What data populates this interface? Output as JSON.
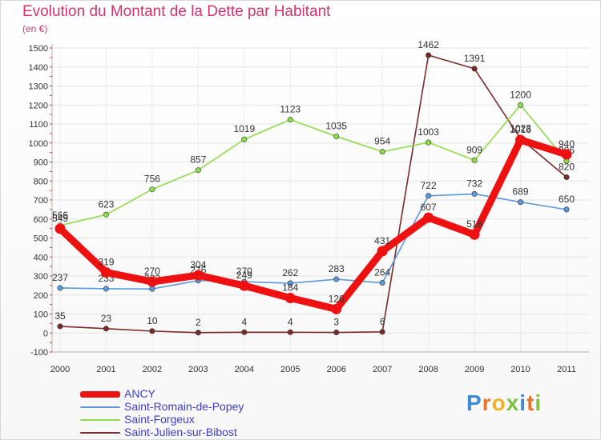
{
  "title": "Evolution du Montant de la Dette par Habitant",
  "subtitle": "(en €)",
  "logo_text": [
    "P",
    "r",
    "o",
    "x",
    "i",
    "t",
    "i"
  ],
  "logo_colors": [
    "#3e8ad6",
    "#e8732a",
    "#f0b223",
    "#7cc242",
    "#3e8ad6",
    "#e8732a",
    "#7cc242"
  ],
  "chart_data": {
    "type": "line",
    "title": "Evolution du Montant de la Dette par Habitant",
    "ylabel": "(en €)",
    "xlabel": "",
    "x": [
      "2000",
      "2001",
      "2002",
      "2003",
      "2004",
      "2005",
      "2006",
      "2007",
      "2008",
      "2009",
      "2010",
      "2011"
    ],
    "ylim": [
      -100,
      1500
    ],
    "yticks": [
      "-100",
      "0",
      "100",
      "200",
      "300",
      "400",
      "500",
      "600",
      "700",
      "800",
      "900",
      "1000",
      "1100",
      "1200",
      "1300",
      "1400",
      "1500"
    ],
    "grid": true,
    "legend_position": "bottom-left",
    "series": [
      {
        "name": "Saint-Julien-sur-Bibost",
        "color": "#7b2a2a",
        "emphasis": false,
        "values": [
          35,
          23,
          10,
          2,
          4,
          4,
          3,
          6,
          1462,
          1391,
          1023,
          820
        ],
        "labels": [
          "35",
          "23",
          "10",
          "2",
          "4",
          "4",
          "3",
          "6",
          "1462",
          "1391",
          "1023",
          "820"
        ]
      },
      {
        "name": "Saint-Forgeux",
        "color": "#8fdc4a",
        "emphasis": false,
        "values": [
          566,
          623,
          756,
          857,
          1019,
          1123,
          1035,
          954,
          1003,
          909,
          1200,
          906
        ],
        "labels": [
          "566",
          "623",
          "756",
          "857",
          "1019",
          "1123",
          "1035",
          "954",
          "1003",
          "909",
          "1200",
          "906"
        ]
      },
      {
        "name": "Saint-Romain-de-Popey",
        "color": "#5a9ad8",
        "emphasis": false,
        "values": [
          237,
          233,
          232,
          276,
          270,
          262,
          283,
          264,
          722,
          732,
          689,
          650
        ],
        "labels": [
          "237",
          "233",
          "232",
          "276",
          "270",
          "262",
          "283",
          "264",
          "722",
          "732",
          "689",
          "650"
        ]
      },
      {
        "name": "ANCY",
        "color": "#ee1111",
        "emphasis": true,
        "values": [
          549,
          319,
          270,
          304,
          249,
          184,
          126,
          431,
          607,
          518,
          1016,
          940
        ],
        "labels": [
          "549",
          "319",
          "270",
          "304",
          "249",
          "184",
          "126",
          "431",
          "607",
          "518",
          "1016",
          "940"
        ]
      }
    ],
    "legend_order": [
      "ANCY",
      "Saint-Romain-de-Popey",
      "Saint-Forgeux",
      "Saint-Julien-sur-Bibost"
    ]
  },
  "legend": [
    {
      "label": "ANCY",
      "color": "#ee1111",
      "emphasis": true
    },
    {
      "label": "Saint-Romain-de-Popey",
      "color": "#5a9ad8",
      "emphasis": false
    },
    {
      "label": "Saint-Forgeux",
      "color": "#8fdc4a",
      "emphasis": false
    },
    {
      "label": "Saint-Julien-sur-Bibost",
      "color": "#7b2a2a",
      "emphasis": false
    }
  ]
}
